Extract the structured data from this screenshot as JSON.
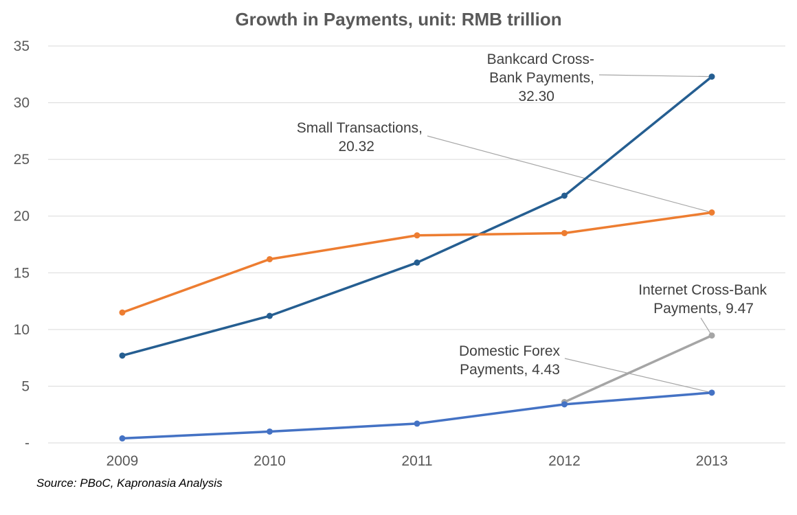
{
  "chart_data": {
    "type": "line",
    "title": "Growth in Payments, unit: RMB trillion",
    "categories": [
      "2009",
      "2010",
      "2011",
      "2012",
      "2013"
    ],
    "ylim": [
      0,
      35
    ],
    "y_ticks": [
      {
        "value": 0,
        "label": "-"
      },
      {
        "value": 5,
        "label": "5"
      },
      {
        "value": 10,
        "label": "10"
      },
      {
        "value": 15,
        "label": "15"
      },
      {
        "value": 20,
        "label": "20"
      },
      {
        "value": 25,
        "label": "25"
      },
      {
        "value": 30,
        "label": "30"
      },
      {
        "value": 35,
        "label": "35"
      }
    ],
    "grid": true,
    "legend": "none",
    "series": [
      {
        "key": "bankcard",
        "color": "#255e91",
        "values": [
          7.7,
          11.2,
          15.9,
          21.8,
          32.3
        ]
      },
      {
        "key": "small",
        "color": "#ed7d31",
        "values": [
          11.5,
          16.2,
          18.3,
          18.5,
          20.32
        ]
      },
      {
        "key": "internet",
        "color": "#a5a5a5",
        "values": [
          null,
          null,
          null,
          3.6,
          9.47
        ]
      },
      {
        "key": "forex",
        "color": "#4472c4",
        "values": [
          0.4,
          1.0,
          1.7,
          3.4,
          4.43
        ]
      }
    ],
    "annotations": [
      {
        "series": "bankcard",
        "lines": [
          "Bankcard Cross-",
          "Bank Payments,",
          "32.30"
        ]
      },
      {
        "series": "small",
        "lines": [
          "Small Transactions,",
          "20.32"
        ]
      },
      {
        "series": "internet",
        "lines": [
          "Internet Cross-Bank",
          "Payments,  9.47"
        ]
      },
      {
        "series": "forex",
        "lines": [
          "Domestic Forex",
          "Payments,  4.43"
        ]
      }
    ],
    "source": "Source: PBoC, Kapronasia Analysis"
  }
}
